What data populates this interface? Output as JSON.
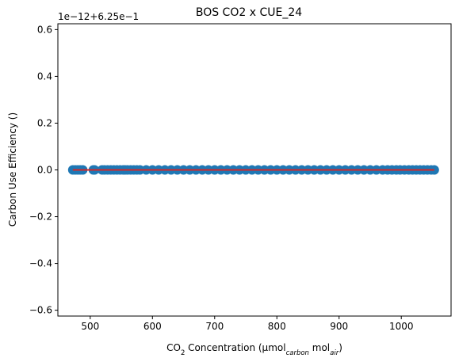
{
  "chart_data": {
    "type": "scatter",
    "title": "BOS CO2 x CUE_24",
    "offset_text": "1e−12+6.25e−1",
    "xlabel": {
      "prefix": "CO",
      "sub1": "2",
      "middle": " Concentration (µmol",
      "sub2": "carbon",
      "middle2": " mol",
      "sub3": "air",
      "suffix": ")"
    },
    "ylabel": "Carbon Use Efficiency ()",
    "xlim": [
      448,
      1080
    ],
    "ylim": [
      -0.625,
      0.625
    ],
    "xticks": [
      500,
      600,
      700,
      800,
      900,
      1000
    ],
    "yticks": [
      -0.6,
      -0.4,
      -0.2,
      0.0,
      0.2,
      0.4,
      0.6
    ],
    "ytick_labels": [
      "−0.6",
      "−0.4",
      "−0.2",
      "0.0",
      "0.2",
      "0.4",
      "0.6"
    ],
    "series": [
      {
        "kind": "points",
        "color": "#1f77b4",
        "x": [
          472,
          476,
          480,
          484,
          488,
          505,
          507,
          519,
          523,
          528,
          533,
          538,
          543,
          548,
          553,
          556,
          560,
          565,
          570,
          575,
          580,
          590,
          600,
          610,
          620,
          630,
          640,
          650,
          660,
          670,
          680,
          690,
          700,
          710,
          720,
          730,
          740,
          750,
          760,
          770,
          780,
          790,
          800,
          810,
          820,
          830,
          840,
          850,
          860,
          870,
          880,
          890,
          900,
          910,
          920,
          930,
          940,
          950,
          960,
          970,
          978,
          985,
          992,
          998,
          1005,
          1012,
          1018,
          1024,
          1030,
          1036,
          1042,
          1048,
          1053
        ],
        "y_value": 0.0
      },
      {
        "kind": "line",
        "color": "#d62728",
        "x": [
          472,
          1053
        ],
        "y": [
          0.0,
          0.0
        ]
      }
    ],
    "grid": false
  }
}
